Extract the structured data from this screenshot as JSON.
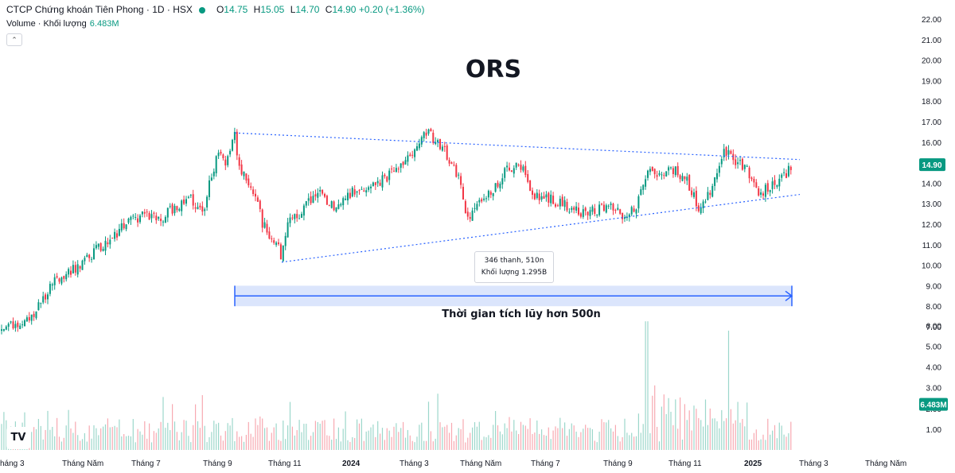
{
  "header": {
    "title": "CTCP Chứng khoán Tiên Phong · 1D · HSX",
    "ohlc": [
      {
        "label": "O",
        "value": "14.75"
      },
      {
        "label": "H",
        "value": "15.05"
      },
      {
        "label": "L",
        "value": "14.70"
      },
      {
        "label": "C",
        "value": "14.90"
      }
    ],
    "change": "+0.20 (+1.36%)",
    "volume_label": "Volume · Khối lượng",
    "volume_value": "6.483M"
  },
  "symbol": "ORS",
  "tooltip": {
    "line1": "346 thanh, 510n",
    "line2": "Khối lượng 1.295B"
  },
  "note": "Thời gian tích lũy hơn 500n",
  "colors": {
    "up": "#089981",
    "down": "#f23645",
    "trendline": "#2962ff",
    "range_fill": "#cfdcfb",
    "range_line": "#2962ff",
    "price_badge": "#089981"
  },
  "logo": "TV",
  "chart_data": {
    "type": "candlestick",
    "price_axis": {
      "ticks": [
        "22.00",
        "21.00",
        "20.00",
        "19.00",
        "18.00",
        "17.00",
        "16.00",
        "15.00",
        "14.00",
        "13.00",
        "12.00",
        "11.00",
        "10.00",
        "9.00",
        "8.00",
        "7.00"
      ],
      "range": [
        6.4,
        22.6
      ],
      "last_price": "14.90"
    },
    "volume_axis": {
      "ticks": [
        "6.00",
        "5.00",
        "4.00",
        "3.00",
        "2.00",
        "1.00"
      ],
      "unit": "M",
      "last_volume": "6.483M"
    },
    "time_labels": [
      "háng 3",
      "Tháng Năm",
      "Tháng 7",
      "Tháng 9",
      "Tháng 11",
      "2024",
      "Tháng 3",
      "Tháng Năm",
      "Tháng 7",
      "Tháng 9",
      "Tháng 11",
      "2025",
      "Tháng 3",
      "Tháng Năm"
    ],
    "bold_time_labels": [
      "2024",
      "2025"
    ],
    "anchors": [
      [
        0,
        6.8
      ],
      [
        20,
        7.1
      ],
      [
        35,
        7.3
      ],
      [
        50,
        8.0
      ],
      [
        65,
        9.2
      ],
      [
        80,
        9.6
      ],
      [
        100,
        10.0
      ],
      [
        120,
        10.7
      ],
      [
        140,
        11.2
      ],
      [
        160,
        12.1
      ],
      [
        180,
        12.4
      ],
      [
        200,
        12.2
      ],
      [
        220,
        12.8
      ],
      [
        240,
        13.2
      ],
      [
        255,
        12.5
      ],
      [
        265,
        14.3
      ],
      [
        275,
        15.5
      ],
      [
        285,
        15.0
      ],
      [
        295,
        16.4
      ],
      [
        300,
        14.9
      ],
      [
        310,
        14.0
      ],
      [
        320,
        13.6
      ],
      [
        330,
        12.0
      ],
      [
        340,
        11.4
      ],
      [
        348,
        11.1
      ],
      [
        354,
        10.3
      ],
      [
        362,
        12.0
      ],
      [
        380,
        12.7
      ],
      [
        400,
        13.5
      ],
      [
        420,
        12.8
      ],
      [
        440,
        13.5
      ],
      [
        460,
        13.9
      ],
      [
        480,
        14.1
      ],
      [
        500,
        14.8
      ],
      [
        520,
        15.5
      ],
      [
        537,
        16.5
      ],
      [
        550,
        16.0
      ],
      [
        565,
        15.2
      ],
      [
        580,
        13.8
      ],
      [
        587,
        12.2
      ],
      [
        600,
        13.2
      ],
      [
        620,
        13.7
      ],
      [
        640,
        14.8
      ],
      [
        655,
        14.9
      ],
      [
        670,
        13.5
      ],
      [
        690,
        13.2
      ],
      [
        710,
        12.9
      ],
      [
        730,
        12.6
      ],
      [
        750,
        12.7
      ],
      [
        770,
        12.8
      ],
      [
        785,
        12.3
      ],
      [
        800,
        12.8
      ],
      [
        815,
        14.7
      ],
      [
        830,
        14.5
      ],
      [
        850,
        14.6
      ],
      [
        865,
        14.0
      ],
      [
        880,
        12.6
      ],
      [
        895,
        13.9
      ],
      [
        910,
        15.6
      ],
      [
        925,
        15.0
      ],
      [
        940,
        14.6
      ],
      [
        955,
        13.4
      ],
      [
        970,
        14.0
      ],
      [
        985,
        14.3
      ],
      [
        995,
        14.9
      ]
    ],
    "trendlines": [
      {
        "name": "upper",
        "from": [
          295,
          16.45
        ],
        "to": [
          1005,
          15.15
        ]
      },
      {
        "name": "lower",
        "from": [
          354,
          10.15
        ],
        "to": [
          1005,
          13.45
        ]
      }
    ],
    "range_marker": {
      "from": 295,
      "to": 995,
      "price_top": 9.0,
      "price_bottom": 8.0,
      "bars": 346,
      "days": 510
    }
  }
}
